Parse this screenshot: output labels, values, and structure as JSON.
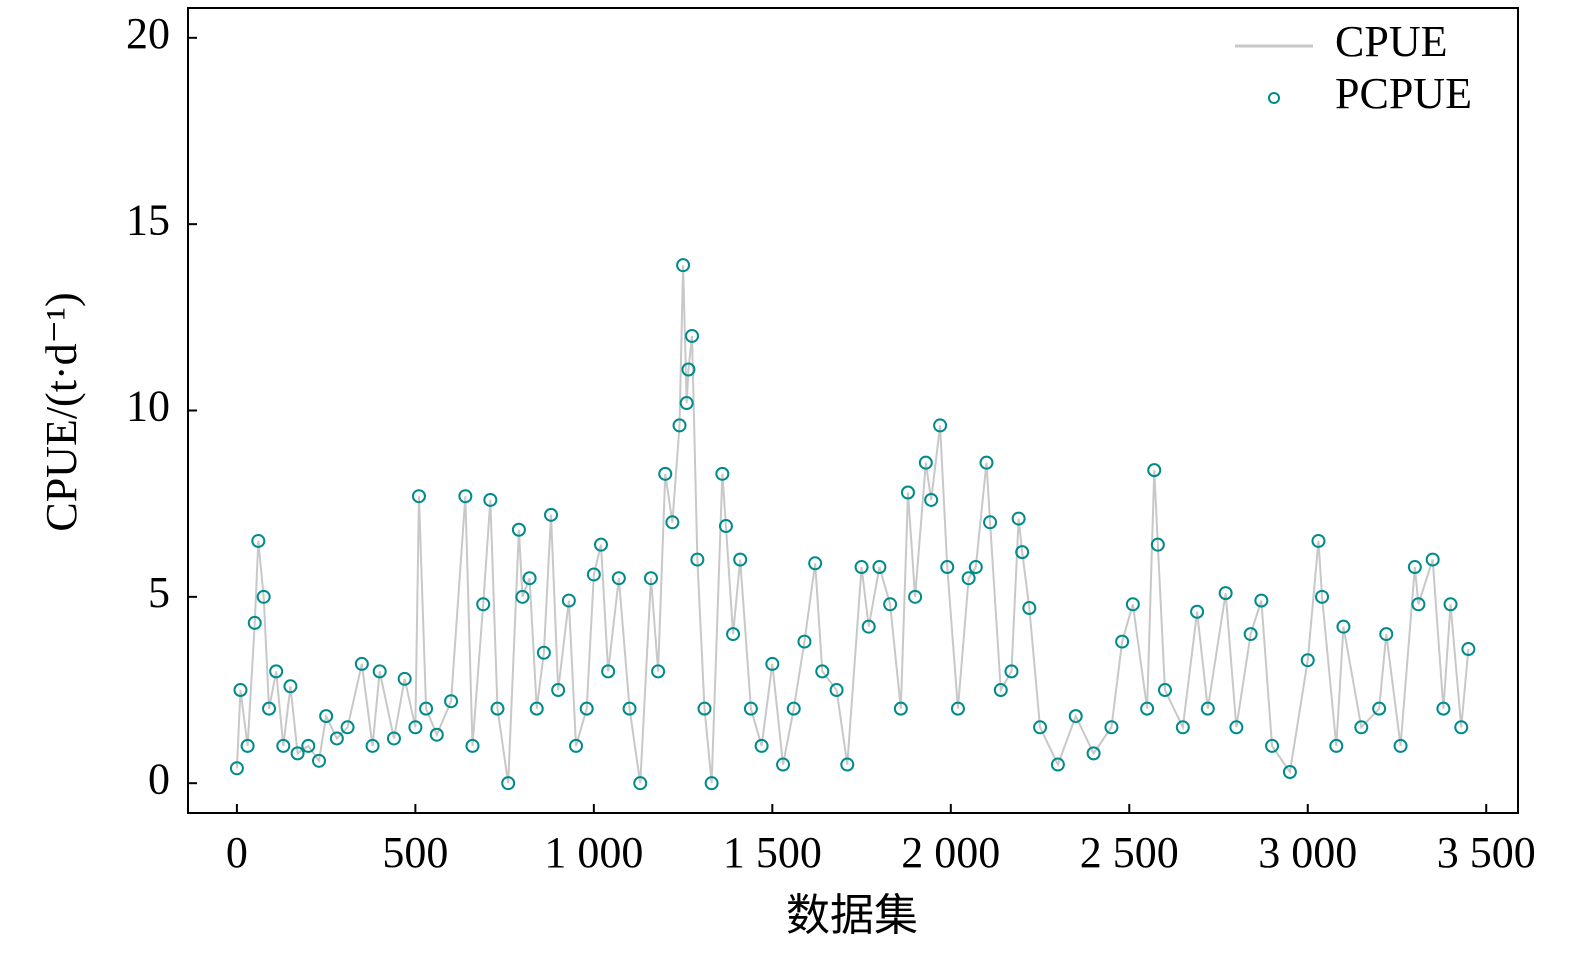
{
  "chart_data": {
    "type": "line",
    "xlabel": "数据集",
    "ylabel": "CPUE/(t·d⁻¹)",
    "x": [
      0,
      10,
      30,
      50,
      60,
      75,
      90,
      110,
      130,
      150,
      170,
      200,
      230,
      250,
      280,
      310,
      350,
      380,
      400,
      440,
      470,
      500,
      510,
      530,
      560,
      600,
      640,
      660,
      690,
      710,
      730,
      760,
      790,
      800,
      820,
      840,
      860,
      880,
      900,
      930,
      950,
      980,
      1000,
      1020,
      1040,
      1070,
      1100,
      1130,
      1160,
      1180,
      1200,
      1220,
      1240,
      1250,
      1260,
      1265,
      1275,
      1290,
      1310,
      1330,
      1360,
      1370,
      1390,
      1410,
      1440,
      1470,
      1500,
      1530,
      1560,
      1590,
      1620,
      1640,
      1680,
      1710,
      1750,
      1770,
      1800,
      1830,
      1860,
      1880,
      1900,
      1930,
      1945,
      1970,
      1990,
      2020,
      2050,
      2070,
      2100,
      2110,
      2140,
      2170,
      2190,
      2200,
      2220,
      2250,
      2300,
      2350,
      2400,
      2450,
      2480,
      2510,
      2550,
      2570,
      2580,
      2600,
      2650,
      2690,
      2720,
      2770,
      2800,
      2840,
      2870,
      2900,
      2950,
      3000,
      3030,
      3040,
      3080,
      3100,
      3150,
      3200,
      3220,
      3260,
      3300,
      3310,
      3350,
      3380,
      3400,
      3430,
      3450
    ],
    "series": [
      {
        "name": "CPUE",
        "color": "#c8c8c8",
        "style": "line",
        "values": [
          0.4,
          2.5,
          1.0,
          4.3,
          6.5,
          5.0,
          2.0,
          3.0,
          1.0,
          2.6,
          0.8,
          1.0,
          0.6,
          1.8,
          1.2,
          1.5,
          3.2,
          1.0,
          3.0,
          1.2,
          2.8,
          1.5,
          7.7,
          2.0,
          1.3,
          2.2,
          7.7,
          1.0,
          4.8,
          7.6,
          2.0,
          0.0,
          6.8,
          5.0,
          5.5,
          2.0,
          3.5,
          7.2,
          2.5,
          4.9,
          1.0,
          2.0,
          5.6,
          6.4,
          3.0,
          5.5,
          2.0,
          0.0,
          5.5,
          3.0,
          8.3,
          7.0,
          9.6,
          13.9,
          10.2,
          11.1,
          12.0,
          6.0,
          2.0,
          0.0,
          8.3,
          6.9,
          4.0,
          6.0,
          2.0,
          1.0,
          3.2,
          0.5,
          2.0,
          3.8,
          5.9,
          3.0,
          2.5,
          0.5,
          5.8,
          4.2,
          5.8,
          4.8,
          2.0,
          7.8,
          5.0,
          8.6,
          7.6,
          9.6,
          5.8,
          2.0,
          5.5,
          5.8,
          8.6,
          7.0,
          2.5,
          3.0,
          7.1,
          6.2,
          4.7,
          1.5,
          0.5,
          1.8,
          0.8,
          1.5,
          3.8,
          4.8,
          2.0,
          8.4,
          6.4,
          2.5,
          1.5,
          4.6,
          2.0,
          5.1,
          1.5,
          4.0,
          4.9,
          1.0,
          0.3,
          3.3,
          6.5,
          5.0,
          1.0,
          4.2,
          1.5,
          2.0,
          4.0,
          1.0,
          5.8,
          4.8,
          6.0,
          2.0,
          4.8,
          1.5,
          3.6
        ]
      },
      {
        "name": "PCPUE",
        "color": "#008b8b",
        "style": "marker",
        "values": [
          0.4,
          2.5,
          1.0,
          4.3,
          6.5,
          5.0,
          2.0,
          3.0,
          1.0,
          2.6,
          0.8,
          1.0,
          0.6,
          1.8,
          1.2,
          1.5,
          3.2,
          1.0,
          3.0,
          1.2,
          2.8,
          1.5,
          7.7,
          2.0,
          1.3,
          2.2,
          7.7,
          1.0,
          4.8,
          7.6,
          2.0,
          0.0,
          6.8,
          5.0,
          5.5,
          2.0,
          3.5,
          7.2,
          2.5,
          4.9,
          1.0,
          2.0,
          5.6,
          6.4,
          3.0,
          5.5,
          2.0,
          0.0,
          5.5,
          3.0,
          8.3,
          7.0,
          9.6,
          13.9,
          10.2,
          11.1,
          12.0,
          6.0,
          2.0,
          0.0,
          8.3,
          6.9,
          4.0,
          6.0,
          2.0,
          1.0,
          3.2,
          0.5,
          2.0,
          3.8,
          5.9,
          3.0,
          2.5,
          0.5,
          5.8,
          4.2,
          5.8,
          4.8,
          2.0,
          7.8,
          5.0,
          8.6,
          7.6,
          9.6,
          5.8,
          2.0,
          5.5,
          5.8,
          8.6,
          7.0,
          2.5,
          3.0,
          7.1,
          6.2,
          4.7,
          1.5,
          0.5,
          1.8,
          0.8,
          1.5,
          3.8,
          4.8,
          2.0,
          8.4,
          6.4,
          2.5,
          1.5,
          4.6,
          2.0,
          5.1,
          1.5,
          4.0,
          4.9,
          1.0,
          0.3,
          3.3,
          6.5,
          5.0,
          1.0,
          4.2,
          1.5,
          2.0,
          4.0,
          1.0,
          5.8,
          4.8,
          6.0,
          2.0,
          4.8,
          1.5,
          3.6
        ]
      }
    ],
    "xlim": [
      -137,
      3589
    ],
    "ylim": [
      -0.8,
      20.8
    ],
    "xticks": [
      0,
      500,
      {
        "value": 1000,
        "label": "1 000"
      },
      {
        "value": 1500,
        "label": "1 500"
      },
      {
        "value": 2000,
        "label": "2 000"
      },
      {
        "value": 2500,
        "label": "2 500"
      },
      {
        "value": 3000,
        "label": "3 000"
      },
      {
        "value": 3500,
        "label": "3 500"
      }
    ],
    "yticks": [
      0,
      5,
      10,
      15,
      20
    ],
    "legend": "upper right"
  }
}
